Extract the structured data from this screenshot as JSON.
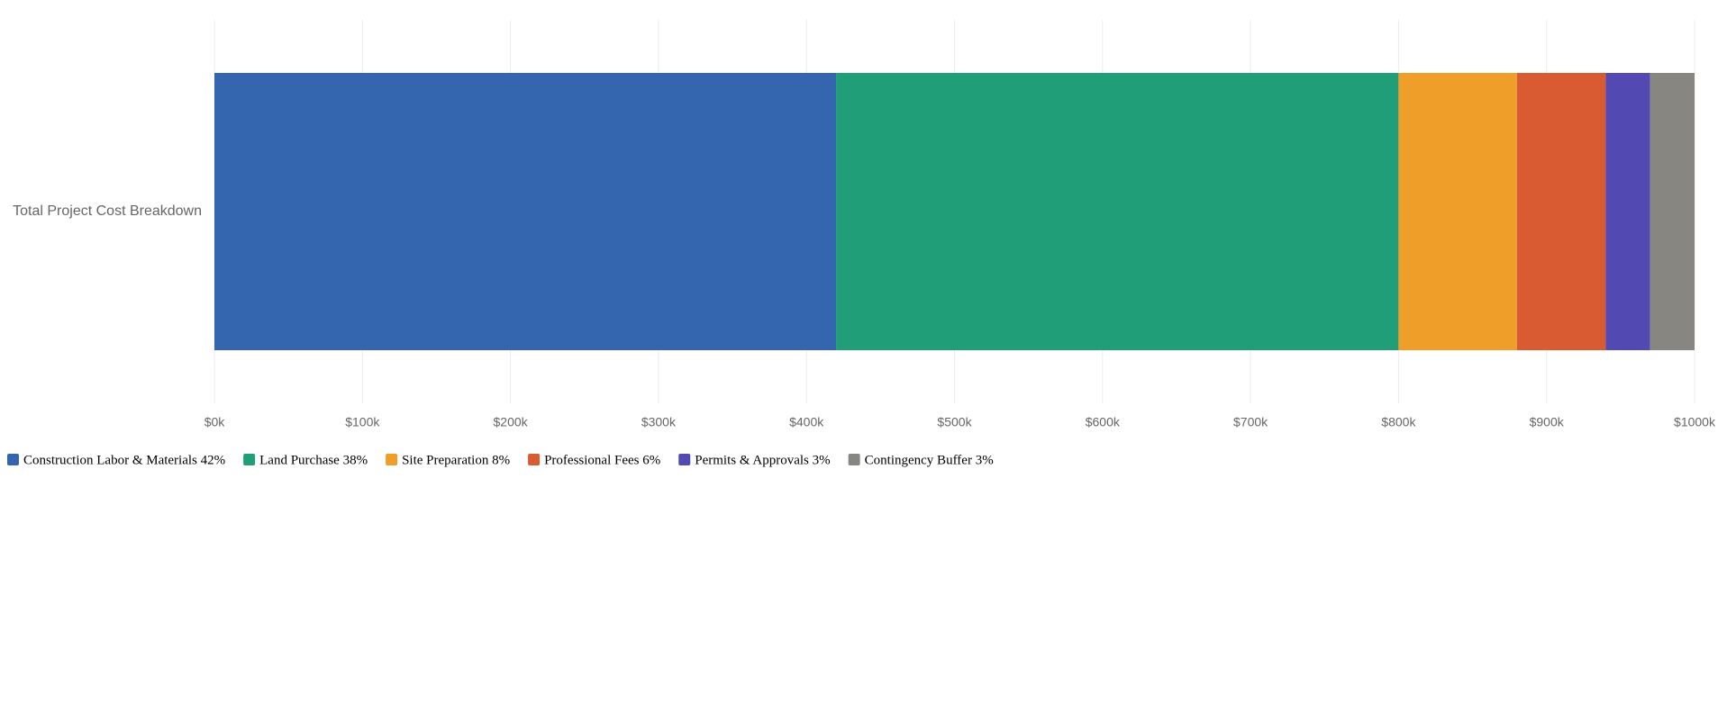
{
  "chart_data": {
    "type": "bar",
    "orientation": "horizontal",
    "stacked": true,
    "categories": [
      "Total Project Cost Breakdown"
    ],
    "series": [
      {
        "name": "Construction Labor & Materials 42%",
        "color": "#3366ae",
        "values": [
          420
        ]
      },
      {
        "name": "Land Purchase 38%",
        "color": "#1f9e77",
        "values": [
          380
        ]
      },
      {
        "name": "Site Preparation 8%",
        "color": "#f09e2a",
        "values": [
          80
        ]
      },
      {
        "name": "Professional Fees 6%",
        "color": "#d95b32",
        "values": [
          60
        ]
      },
      {
        "name": "Permits & Approvals 3%",
        "color": "#5349b3",
        "values": [
          30
        ]
      },
      {
        "name": "Contingency Buffer 3%",
        "color": "#878680",
        "values": [
          30
        ]
      }
    ],
    "xlim": [
      0,
      1000
    ],
    "xticks": [
      {
        "value": 0,
        "label": "$0k"
      },
      {
        "value": 100,
        "label": "$100k"
      },
      {
        "value": 200,
        "label": "$200k"
      },
      {
        "value": 300,
        "label": "$300k"
      },
      {
        "value": 400,
        "label": "$400k"
      },
      {
        "value": 500,
        "label": "$500k"
      },
      {
        "value": 600,
        "label": "$600k"
      },
      {
        "value": 700,
        "label": "$700k"
      },
      {
        "value": 800,
        "label": "$800k"
      },
      {
        "value": 900,
        "label": "$900k"
      },
      {
        "value": 1000,
        "label": "$1000k"
      }
    ],
    "grid": true,
    "legend": "bottom-left"
  }
}
